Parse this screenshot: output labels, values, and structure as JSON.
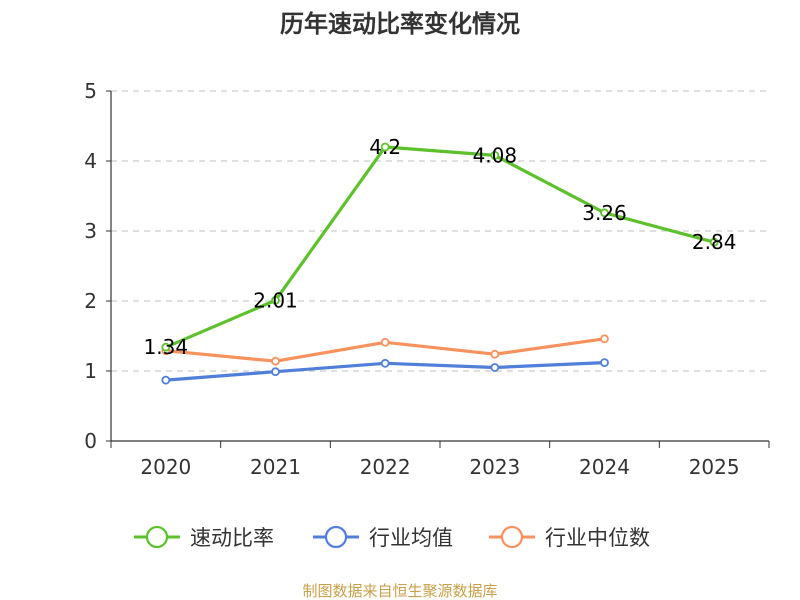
{
  "chart_data": {
    "type": "line",
    "title": "历年速动比率变化情况",
    "categories": [
      "2020",
      "2021",
      "2022",
      "2023",
      "2024",
      "2025"
    ],
    "ylim": [
      0,
      5
    ],
    "yticks": [
      "0",
      "1",
      "2",
      "3",
      "4",
      "5"
    ],
    "grid": true,
    "legend_position": "bottom",
    "series": [
      {
        "name": "速动比率",
        "color": "#5cc12b",
        "values": [
          1.34,
          2.01,
          4.2,
          4.08,
          3.26,
          2.84
        ],
        "labels": [
          "1.34",
          "2.01",
          "4.2",
          "4.08",
          "3.26",
          "2.84"
        ]
      },
      {
        "name": "行业均值",
        "color": "#4f7fd8",
        "values": [
          0.87,
          0.99,
          1.11,
          1.05,
          1.12,
          null
        ]
      },
      {
        "name": "行业中位数",
        "color": "#f7925c",
        "values": [
          1.29,
          1.14,
          1.41,
          1.24,
          1.46,
          null
        ]
      }
    ]
  },
  "footer": {
    "source": "制图数据来自恒生聚源数据库"
  }
}
